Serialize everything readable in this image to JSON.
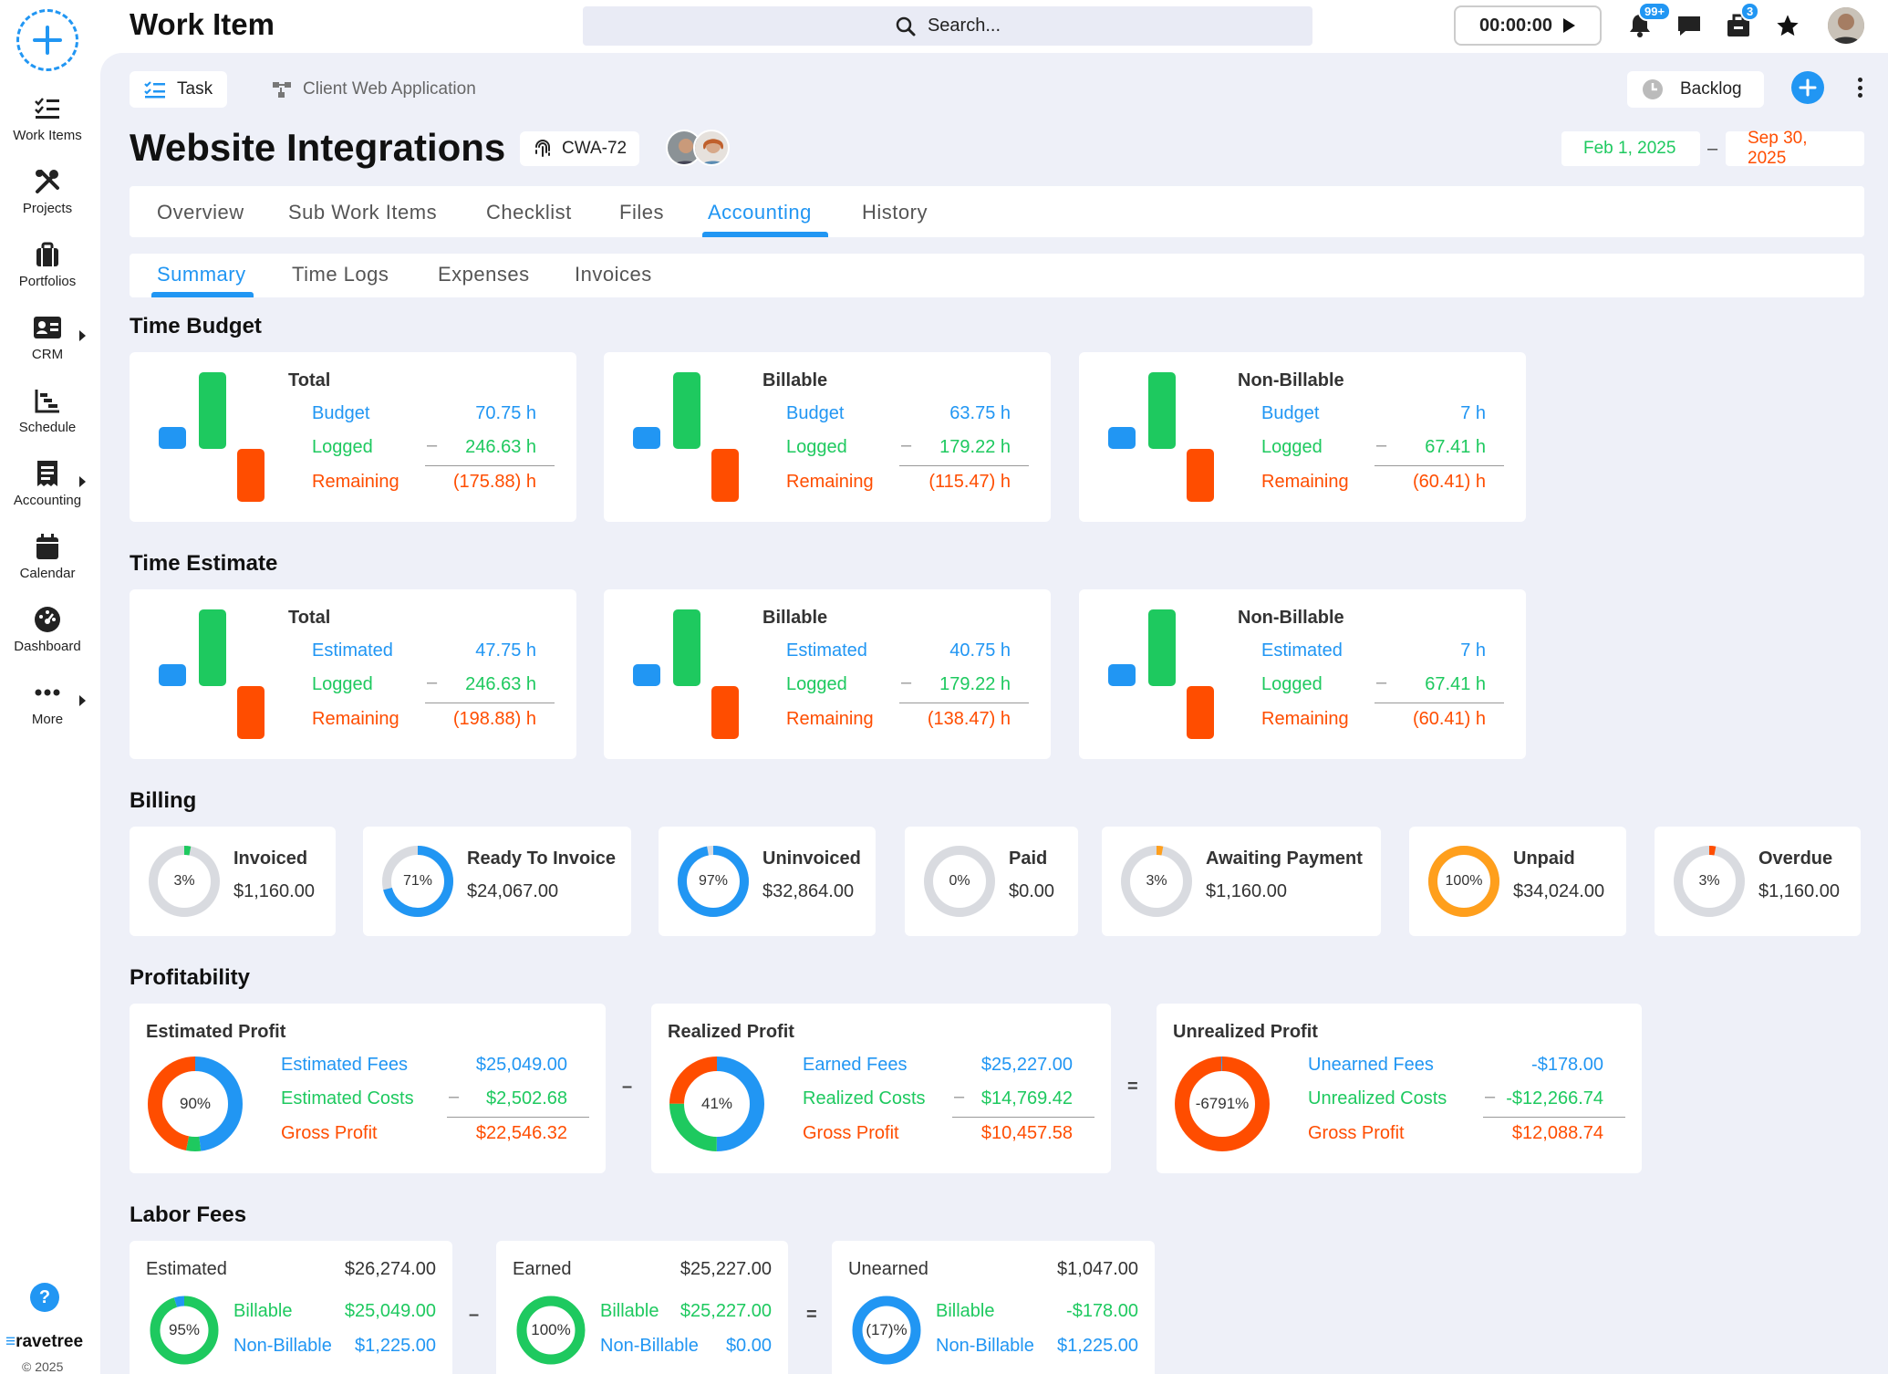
{
  "app": {
    "title": "Work Item",
    "search_placeholder": "Search...",
    "timer": "00:00:00",
    "notif_badge": "99+",
    "briefcase_badge": "3",
    "brand": "ravetree",
    "copyright": "© 2025"
  },
  "sidebar": {
    "items": [
      {
        "label": "Work Items",
        "icon": "checklist-icon"
      },
      {
        "label": "Projects",
        "icon": "tools-icon"
      },
      {
        "label": "Portfolios",
        "icon": "briefcase-icon"
      },
      {
        "label": "CRM",
        "icon": "contact-card-icon"
      },
      {
        "label": "Schedule",
        "icon": "schedule-icon"
      },
      {
        "label": "Accounting",
        "icon": "receipt-icon"
      },
      {
        "label": "Calendar",
        "icon": "calendar-icon"
      },
      {
        "label": "Dashboard",
        "icon": "gauge-icon"
      },
      {
        "label": "More",
        "icon": "more-icon"
      }
    ]
  },
  "header": {
    "type_label": "Task",
    "project_label": "Client Web Application",
    "status": "Backlog",
    "title": "Website Integrations",
    "id": "CWA-72",
    "start_date": "Feb 1, 2025",
    "end_date": "Sep 30, 2025"
  },
  "tabs": [
    "Overview",
    "Sub Work Items",
    "Checklist",
    "Files",
    "Accounting",
    "History"
  ],
  "subtabs": [
    "Summary",
    "Time Logs",
    "Expenses",
    "Invoices"
  ],
  "colors": {
    "accent": "#2196f3",
    "green": "#1ec95f",
    "orange": "#ff4d00",
    "amber": "#ff9f1c"
  },
  "time_budget": {
    "title": "Time Budget",
    "cards": [
      {
        "title": "Total",
        "l1": "Budget",
        "v1": "70.75 h",
        "l2": "Logged",
        "v2": "246.63 h",
        "l3": "Remaining",
        "v3": "(175.88) h"
      },
      {
        "title": "Billable",
        "l1": "Budget",
        "v1": "63.75 h",
        "l2": "Logged",
        "v2": "179.22 h",
        "l3": "Remaining",
        "v3": "(115.47) h"
      },
      {
        "title": "Non-Billable",
        "l1": "Budget",
        "v1": "7 h",
        "l2": "Logged",
        "v2": "67.41 h",
        "l3": "Remaining",
        "v3": "(60.41) h"
      }
    ]
  },
  "time_estimate": {
    "title": "Time Estimate",
    "cards": [
      {
        "title": "Total",
        "l1": "Estimated",
        "v1": "47.75 h",
        "l2": "Logged",
        "v2": "246.63 h",
        "l3": "Remaining",
        "v3": "(198.88) h"
      },
      {
        "title": "Billable",
        "l1": "Estimated",
        "v1": "40.75 h",
        "l2": "Logged",
        "v2": "179.22 h",
        "l3": "Remaining",
        "v3": "(138.47) h"
      },
      {
        "title": "Non-Billable",
        "l1": "Estimated",
        "v1": "7 h",
        "l2": "Logged",
        "v2": "67.41 h",
        "l3": "Remaining",
        "v3": "(60.41) h"
      }
    ]
  },
  "billing": {
    "title": "Billing",
    "items": [
      {
        "label": "Invoiced",
        "amount": "$1,160.00",
        "pct": "3%",
        "fill": 0.03,
        "color": "#1ec95f"
      },
      {
        "label": "Ready To Invoice",
        "amount": "$24,067.00",
        "pct": "71%",
        "fill": 0.71,
        "color": "#2196f3"
      },
      {
        "label": "Uninvoiced",
        "amount": "$32,864.00",
        "pct": "97%",
        "fill": 0.97,
        "color": "#2196f3"
      },
      {
        "label": "Paid",
        "amount": "$0.00",
        "pct": "0%",
        "fill": 0,
        "color": "#1ec95f"
      },
      {
        "label": "Awaiting Payment",
        "amount": "$1,160.00",
        "pct": "3%",
        "fill": 0.03,
        "color": "#ff9f1c"
      },
      {
        "label": "Unpaid",
        "amount": "$34,024.00",
        "pct": "100%",
        "fill": 1,
        "color": "#ff9f1c"
      },
      {
        "label": "Overdue",
        "amount": "$1,160.00",
        "pct": "3%",
        "fill": 0.03,
        "color": "#ff4d00"
      }
    ]
  },
  "profitability": {
    "title": "Profitability",
    "op1": "–",
    "op2": "=",
    "cards": [
      {
        "title": "Estimated Profit",
        "pct": "90%",
        "l1": "Estimated Fees",
        "v1": "$25,049.00",
        "l2": "Estimated Costs",
        "v2": "$2,502.68",
        "l3": "Gross Profit",
        "v3": "$22,546.32"
      },
      {
        "title": "Realized Profit",
        "pct": "41%",
        "l1": "Earned Fees",
        "v1": "$25,227.00",
        "l2": "Realized Costs",
        "v2": "$14,769.42",
        "l3": "Gross Profit",
        "v3": "$10,457.58"
      },
      {
        "title": "Unrealized Profit",
        "pct": "-6791%",
        "l1": "Unearned Fees",
        "v1": "-$178.00",
        "l2": "Unrealized Costs",
        "v2": "-$12,266.74",
        "l3": "Gross Profit",
        "v3": "$12,088.74"
      }
    ]
  },
  "labor": {
    "title": "Labor Fees",
    "op1": "–",
    "op2": "=",
    "cards": [
      {
        "title": "Estimated",
        "total": "$26,274.00",
        "pct": "95%",
        "l1": "Billable",
        "v1": "$25,049.00",
        "l2": "Non-Billable",
        "v2": "$1,225.00"
      },
      {
        "title": "Earned",
        "total": "$25,227.00",
        "pct": "100%",
        "l1": "Billable",
        "v1": "$25,227.00",
        "l2": "Non-Billable",
        "v2": "$0.00"
      },
      {
        "title": "Unearned",
        "total": "$1,047.00",
        "pct": "(17)%",
        "l1": "Billable",
        "v1": "-$178.00",
        "l2": "Non-Billable",
        "v2": "$1,225.00"
      }
    ]
  }
}
